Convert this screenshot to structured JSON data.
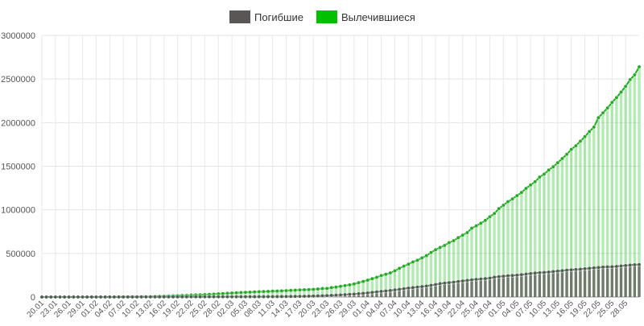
{
  "chart_data": {
    "type": "bar-line",
    "categories": [
      "20.01",
      null,
      null,
      "23.01",
      null,
      null,
      "26.01",
      null,
      null,
      "29.01",
      null,
      null,
      "01.02",
      null,
      null,
      "04.02",
      null,
      null,
      "07.02",
      null,
      null,
      "10.02",
      null,
      null,
      "13.02",
      null,
      null,
      "16.02",
      null,
      null,
      "19.02",
      null,
      null,
      "22.02",
      null,
      null,
      "25.02",
      null,
      null,
      "28.02",
      null,
      null,
      "02.03",
      null,
      null,
      "05.03",
      null,
      null,
      "08.03",
      null,
      null,
      "11.03",
      null,
      null,
      "14.03",
      null,
      null,
      "17.03",
      null,
      null,
      "20.03",
      null,
      null,
      "23.03",
      null,
      null,
      "26.03",
      null,
      null,
      "29.03",
      null,
      null,
      "01.04",
      null,
      null,
      "04.04",
      null,
      null,
      "07.04",
      null,
      null,
      "10.04",
      null,
      null,
      "13.04",
      null,
      null,
      "16.04",
      null,
      null,
      "19.04",
      null,
      null,
      "22.04",
      null,
      null,
      "25.04",
      null,
      null,
      "28.04",
      null,
      null,
      "01.05",
      null,
      null,
      "04.05",
      null,
      null,
      "07.05",
      null,
      null,
      "10.05",
      null,
      null,
      "13.05",
      null,
      null,
      "16.05",
      null,
      null,
      "19.05",
      null,
      null,
      "22.05",
      null,
      null,
      "25.05",
      null,
      null,
      "28.05",
      null,
      null,
      null
    ],
    "series": [
      {
        "name": "Погибшие",
        "color": "#5a5656",
        "line_color": "#4d5d4d",
        "values": [
          6,
          9,
          17,
          18,
          26,
          42,
          56,
          82,
          131,
          133,
          171,
          213,
          259,
          362,
          426,
          492,
          564,
          634,
          719,
          806,
          906,
          1013,
          1113,
          1118,
          1371,
          1523,
          1666,
          1770,
          1868,
          2007,
          2122,
          2247,
          2251,
          2458,
          2469,
          2629,
          2708,
          2770,
          2814,
          2872,
          2941,
          2996,
          3085,
          3160,
          3254,
          3348,
          3460,
          3558,
          3803,
          3996,
          4262,
          4615,
          4720,
          5404,
          5819,
          6440,
          7126,
          7905,
          8733,
          9867,
          11299,
          12973,
          14651,
          16505,
          18625,
          21181,
          23970,
          27198,
          30652,
          33925,
          37582,
          42107,
          46809,
          52983,
          58787,
          64606,
          69374,
          74565,
          81865,
          88338,
          95455,
          102525,
          108503,
          114090,
          119481,
          125983,
          134176,
          143800,
          153822,
          159510,
          165044,
          170423,
          177641,
          184217,
          190858,
          197159,
          202846,
          206544,
          211167,
          217153,
          227638,
          233388,
          238650,
          243401,
          246875,
          250541,
          256333,
          263022,
          268964,
          274860,
          278776,
          282319,
          285970,
          291973,
          297455,
          302733,
          307761,
          312144,
          315237,
          319089,
          324009,
          329066,
          334017,
          338914,
          343140,
          346213,
          347629,
          350742,
          356189,
          360766,
          366037,
          369879,
          371807
        ]
      },
      {
        "name": "Вылечившиеся",
        "color": "#00c000",
        "line_color": "#22aa22",
        "values": [
          0,
          28,
          28,
          30,
          36,
          39,
          52,
          61,
          107,
          126,
          143,
          222,
          284,
          472,
          623,
          852,
          1124,
          1487,
          2011,
          2616,
          3244,
          3946,
          4683,
          5150,
          6295,
          8058,
          9395,
          10865,
          12583,
          14352,
          16121,
          18177,
          18890,
          22886,
          23394,
          25227,
          27905,
          30384,
          33277,
          36711,
          39782,
          42716,
          45602,
          48228,
          51170,
          53796,
          55865,
          58358,
          60694,
          62494,
          64404,
          67003,
          68324,
          70251,
          72624,
          76034,
          78088,
          80840,
          83312,
          84975,
          87403,
          91676,
          97243,
          98334,
          108000,
          113787,
          122150,
          130915,
          139415,
          149082,
          164566,
          178034,
          193177,
          210263,
          225796,
          246152,
          260012,
          276515,
          300054,
          328661,
          353975,
          376096,
          402110,
          421722,
          448655,
          474261,
          510300,
          542107,
          567799,
          591676,
          623903,
          645738,
          680359,
          709575,
          738486,
          789009,
          816684,
          845483,
          878763,
          920402,
          957697,
          1013955,
          1052415,
          1093112,
          1125236,
          1162724,
          1198832,
          1245413,
          1284741,
          1322050,
          1375624,
          1408980,
          1456209,
          1493414,
          1540263,
          1587893,
          1637067,
          1693197,
          1733963,
          1786875,
          1838995,
          1897466,
          1948739,
          2056643,
          2112185,
          2168563,
          2231738,
          2286956,
          2350088,
          2415848,
          2493114,
          2548004,
          2639599
        ]
      }
    ],
    "ylim": [
      0,
      3000000
    ],
    "yticks": [
      0,
      500000,
      1000000,
      1500000,
      2000000,
      2500000,
      3000000
    ],
    "grid": true
  }
}
